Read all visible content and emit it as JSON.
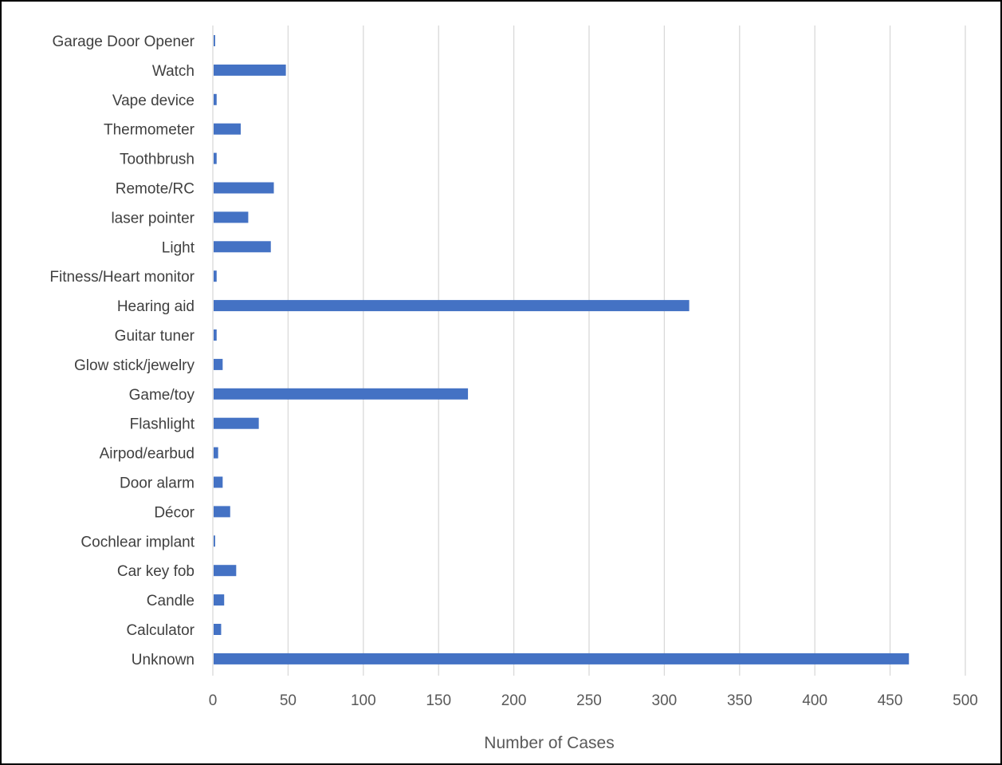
{
  "chart_data": {
    "type": "bar",
    "orientation": "horizontal",
    "categories": [
      "Unknown",
      "Calculator",
      "Candle",
      "Car key fob",
      "Cochlear implant",
      "Décor",
      "Door alarm",
      "Airpod/earbud",
      "Flashlight",
      "Game/toy",
      "Glow stick/jewelry",
      "Guitar tuner",
      "Hearing aid",
      "Fitness/Heart monitor",
      "Light",
      "laser pointer",
      "Remote/RC",
      "Toothbrush",
      "Thermometer",
      "Vape device",
      "Watch",
      "Garage Door Opener"
    ],
    "values": [
      462,
      5,
      7,
      15,
      1,
      11,
      6,
      3,
      30,
      169,
      6,
      2,
      316,
      2,
      38,
      23,
      40,
      2,
      18,
      2,
      48,
      1
    ],
    "xlabel": "Number of Cases",
    "ylabel": "",
    "title": "",
    "xlim": [
      0,
      500
    ],
    "xticks": [
      0,
      50,
      100,
      150,
      200,
      250,
      300,
      350,
      400,
      450,
      500
    ],
    "grid": true,
    "legend": "none",
    "bar_color": "#4472C4",
    "grid_color": "#D9D9D9"
  }
}
